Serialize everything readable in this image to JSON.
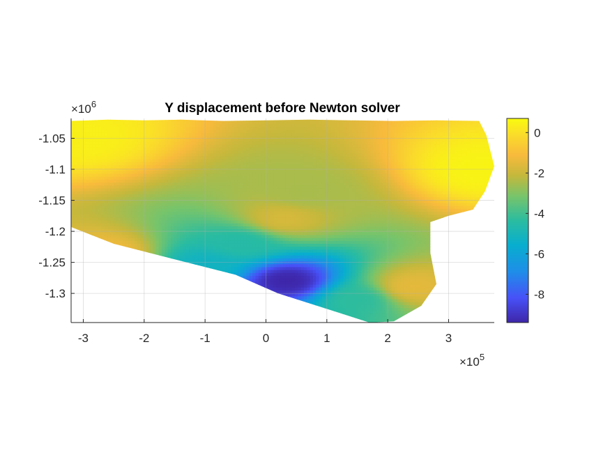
{
  "chart_data": {
    "type": "heatmap",
    "title": "Y displacement before Newton solver",
    "xlabel": "",
    "ylabel": "",
    "x_multiplier": "×10",
    "x_multiplier_exponent": "5",
    "y_multiplier": "×10",
    "y_multiplier_exponent": "6",
    "xlim": [
      -3.2,
      3.75
    ],
    "ylim": [
      -1.347,
      -1.018
    ],
    "xticks": [
      -3,
      -2,
      -1,
      0,
      1,
      2,
      3
    ],
    "xtick_labels": [
      "-3",
      "-2",
      "-1",
      "0",
      "1",
      "2",
      "3"
    ],
    "yticks": [
      -1.05,
      -1.1,
      -1.15,
      -1.2,
      -1.25,
      -1.3
    ],
    "ytick_labels": [
      "-1.05",
      "-1.1",
      "-1.15",
      "-1.2",
      "-1.25",
      "-1.3"
    ],
    "grid": true,
    "colormap": "parula",
    "clim": [
      -9.4,
      0.7
    ],
    "colorbar_ticks": [
      0,
      -2,
      -4,
      -6,
      -8
    ],
    "colorbar_tick_labels": [
      "0",
      "-2",
      "-4",
      "-6",
      "-8"
    ],
    "colorbar_location": "right",
    "domain_outline": [
      [
        -3.2,
        -1.022
      ],
      [
        -2.6,
        -1.02
      ],
      [
        -2.0,
        -1.021
      ],
      [
        -1.4,
        -1.02
      ],
      [
        -0.7,
        -1.022
      ],
      [
        0.0,
        -1.021
      ],
      [
        0.7,
        -1.02
      ],
      [
        1.4,
        -1.021
      ],
      [
        2.1,
        -1.022
      ],
      [
        2.8,
        -1.021
      ],
      [
        3.5,
        -1.022
      ],
      [
        3.62,
        -1.045
      ],
      [
        3.75,
        -1.095
      ],
      [
        3.6,
        -1.135
      ],
      [
        3.4,
        -1.165
      ],
      [
        3.0,
        -1.175
      ],
      [
        2.7,
        -1.185
      ],
      [
        2.7,
        -1.235
      ],
      [
        2.8,
        -1.285
      ],
      [
        2.55,
        -1.32
      ],
      [
        2.1,
        -1.345
      ],
      [
        1.7,
        -1.347
      ],
      [
        1.0,
        -1.325
      ],
      [
        0.2,
        -1.3
      ],
      [
        -0.5,
        -1.27
      ],
      [
        -1.5,
        -1.245
      ],
      [
        -2.5,
        -1.22
      ],
      [
        -3.2,
        -1.193
      ]
    ],
    "field_features": [
      {
        "name": "background",
        "x": 0.3,
        "y": -1.18,
        "value": -1.8
      },
      {
        "name": "left-upper-edge",
        "x": -3.1,
        "y": -1.05,
        "value": 0.4
      },
      {
        "name": "top-right",
        "x": 3.55,
        "y": -1.1,
        "value": 0.5
      },
      {
        "name": "left-flank-low",
        "x": -2.6,
        "y": -1.24,
        "value": -1.2
      },
      {
        "name": "left-trough",
        "x": -1.0,
        "y": -1.255,
        "value": -5.2
      },
      {
        "name": "central-trough",
        "x": -0.4,
        "y": -1.22,
        "value": -4.5
      },
      {
        "name": "right-trough",
        "x": 1.5,
        "y": -1.31,
        "value": -4.3
      },
      {
        "name": "deep-minimum",
        "x": 0.35,
        "y": -1.28,
        "value": -9.4
      },
      {
        "name": "lower-right",
        "x": 2.4,
        "y": -1.29,
        "value": -1.5
      },
      {
        "name": "middle-gap",
        "x": 0.6,
        "y": -1.14,
        "value": -2.5
      }
    ]
  }
}
